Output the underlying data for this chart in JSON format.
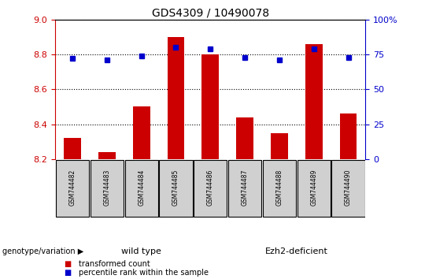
{
  "title": "GDS4309 / 10490078",
  "samples": [
    "GSM744482",
    "GSM744483",
    "GSM744484",
    "GSM744485",
    "GSM744486",
    "GSM744487",
    "GSM744488",
    "GSM744489",
    "GSM744490"
  ],
  "transformed_counts": [
    8.32,
    8.24,
    8.5,
    8.9,
    8.8,
    8.44,
    8.35,
    8.86,
    8.46
  ],
  "percentile_ranks": [
    72,
    71,
    74,
    80,
    79,
    73,
    71,
    79,
    73
  ],
  "ylim_left": [
    8.2,
    9.0
  ],
  "ylim_right": [
    0,
    100
  ],
  "yticks_left": [
    8.2,
    8.4,
    8.6,
    8.8,
    9.0
  ],
  "yticks_right": [
    0,
    25,
    50,
    75,
    100
  ],
  "bar_color": "#cc0000",
  "dot_color": "#0000cc",
  "wt_count": 5,
  "ezh2_count": 4,
  "wild_type_label": "wild type",
  "ezh2_label": "Ezh2-deficient",
  "genotype_label": "genotype/variation",
  "legend_bar_label": "transformed count",
  "legend_dot_label": "percentile rank within the sample",
  "wt_color": "#aaffaa",
  "ezh2_color": "#44dd44",
  "tick_label_color_left": "#cc0000",
  "tick_label_color_right": "#0000cc",
  "sample_box_color": "#d0d0d0",
  "base_value": 8.2
}
